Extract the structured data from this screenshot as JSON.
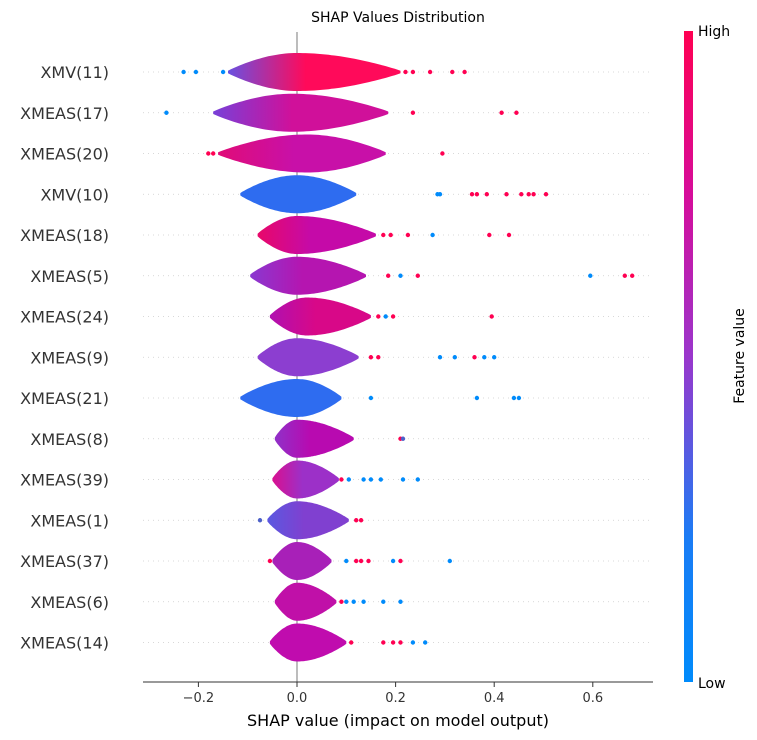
{
  "chart_data": {
    "type": "violin",
    "title": "SHAP Values Distribution",
    "xlabel": "SHAP value (impact on model output)",
    "xlim": [
      -0.31,
      0.72
    ],
    "xticks": [
      -0.2,
      0.0,
      0.2,
      0.4,
      0.6
    ],
    "xtick_labels": [
      "−0.2",
      "0.0",
      "0.2",
      "0.4",
      "0.6"
    ],
    "colorbar": {
      "high_label": "High",
      "low_label": "Low",
      "title": "Feature value",
      "low_color": "#008bfb",
      "high_color": "#ff0052"
    },
    "features": [
      {
        "name": "XMV(11)",
        "range": [
          -0.14,
          0.21
        ],
        "mode": 0.0,
        "color": "#ff0a5a",
        "left_color": "#6a50e0",
        "outliers": [
          [
            -0.23,
            0.0
          ],
          [
            -0.205,
            0.0
          ],
          [
            -0.15,
            0.0
          ],
          [
            0.22,
            1.0
          ],
          [
            0.235,
            1.0
          ],
          [
            0.27,
            1.0
          ],
          [
            0.315,
            1.0
          ],
          [
            0.34,
            1.0
          ]
        ]
      },
      {
        "name": "XMEAS(17)",
        "range": [
          -0.17,
          0.185
        ],
        "mode": -0.01,
        "color": "#d0109a",
        "left_color": "#7840d8",
        "outliers": [
          [
            -0.265,
            0.0
          ],
          [
            0.235,
            1.0
          ],
          [
            0.415,
            1.0
          ],
          [
            0.445,
            1.0
          ]
        ]
      },
      {
        "name": "XMEAS(20)",
        "range": [
          -0.16,
          0.18
        ],
        "mode": 0.02,
        "color": "#c810a8",
        "left_color": "#e00c78",
        "outliers": [
          [
            -0.18,
            1.0
          ],
          [
            -0.17,
            1.0
          ],
          [
            0.295,
            1.0
          ]
        ]
      },
      {
        "name": "XMV(10)",
        "range": [
          -0.115,
          0.12
        ],
        "mode": 0.0,
        "color": "#2e6cf0",
        "left_color": "#2e6cf0",
        "outliers": [
          [
            0.285,
            0.0
          ],
          [
            0.29,
            0.0
          ],
          [
            0.355,
            1.0
          ],
          [
            0.365,
            1.0
          ],
          [
            0.385,
            1.0
          ],
          [
            0.425,
            1.0
          ],
          [
            0.455,
            1.0
          ],
          [
            0.47,
            1.0
          ],
          [
            0.48,
            1.0
          ],
          [
            0.505,
            1.0
          ]
        ]
      },
      {
        "name": "XMEAS(18)",
        "range": [
          -0.08,
          0.16
        ],
        "mode": 0.0,
        "color": "#c50aa8",
        "left_color": "#e8086a",
        "outliers": [
          [
            0.175,
            1.0
          ],
          [
            0.19,
            1.0
          ],
          [
            0.225,
            1.0
          ],
          [
            0.275,
            0.0
          ],
          [
            0.39,
            1.0
          ],
          [
            0.43,
            1.0
          ]
        ]
      },
      {
        "name": "XMEAS(5)",
        "range": [
          -0.095,
          0.14
        ],
        "mode": 0.0,
        "color": "#b515b0",
        "left_color": "#8a38d0",
        "outliers": [
          [
            0.185,
            1.0
          ],
          [
            0.21,
            0.0
          ],
          [
            0.245,
            1.0
          ],
          [
            0.595,
            0.0
          ],
          [
            0.665,
            1.0
          ],
          [
            0.68,
            1.0
          ]
        ]
      },
      {
        "name": "XMEAS(24)",
        "range": [
          -0.055,
          0.15
        ],
        "mode": 0.02,
        "color": "#d80888",
        "left_color": "#b010b0",
        "outliers": [
          [
            0.165,
            1.0
          ],
          [
            0.18,
            0.0
          ],
          [
            0.195,
            1.0
          ],
          [
            0.395,
            1.0
          ]
        ]
      },
      {
        "name": "XMEAS(9)",
        "range": [
          -0.08,
          0.125
        ],
        "mode": 0.0,
        "color": "#8c3ed0",
        "left_color": "#8c3ed0",
        "outliers": [
          [
            0.15,
            1.0
          ],
          [
            0.165,
            1.0
          ],
          [
            0.29,
            0.0
          ],
          [
            0.32,
            0.0
          ],
          [
            0.36,
            1.0
          ],
          [
            0.38,
            0.0
          ],
          [
            0.4,
            0.0
          ]
        ]
      },
      {
        "name": "XMEAS(21)",
        "range": [
          -0.115,
          0.09
        ],
        "mode": 0.0,
        "color": "#2e6cf0",
        "left_color": "#2e6cf0",
        "outliers": [
          [
            0.15,
            0.0
          ],
          [
            0.365,
            0.0
          ],
          [
            0.44,
            0.0
          ],
          [
            0.45,
            0.0
          ]
        ]
      },
      {
        "name": "XMEAS(8)",
        "range": [
          -0.045,
          0.115
        ],
        "mode": 0.0,
        "color": "#b80ab0",
        "left_color": "#9030c8",
        "outliers": [
          [
            0.21,
            1.0
          ],
          [
            0.215,
            0.3
          ]
        ]
      },
      {
        "name": "XMEAS(39)",
        "range": [
          -0.05,
          0.085
        ],
        "mode": 0.0,
        "color": "#9c30c8",
        "left_color": "#d81090",
        "outliers": [
          [
            0.09,
            1.0
          ],
          [
            0.105,
            0.0
          ],
          [
            0.135,
            0.0
          ],
          [
            0.15,
            0.0
          ],
          [
            0.17,
            0.0
          ],
          [
            0.215,
            0.0
          ],
          [
            0.245,
            0.0
          ]
        ]
      },
      {
        "name": "XMEAS(1)",
        "range": [
          -0.06,
          0.105
        ],
        "mode": 0.0,
        "color": "#8040d0",
        "left_color": "#5a58e0",
        "outliers": [
          [
            -0.075,
            0.3
          ],
          [
            0.12,
            1.0
          ],
          [
            0.13,
            1.0
          ]
        ]
      },
      {
        "name": "XMEAS(37)",
        "range": [
          -0.05,
          0.07
        ],
        "mode": 0.0,
        "color": "#a820b8",
        "left_color": "#a820b8",
        "outliers": [
          [
            -0.055,
            1.0
          ],
          [
            0.1,
            0.0
          ],
          [
            0.12,
            1.0
          ],
          [
            0.13,
            1.0
          ],
          [
            0.145,
            1.0
          ],
          [
            0.195,
            0.0
          ],
          [
            0.21,
            1.0
          ],
          [
            0.31,
            0.0
          ]
        ]
      },
      {
        "name": "XMEAS(6)",
        "range": [
          -0.045,
          0.08
        ],
        "mode": 0.0,
        "color": "#c010a8",
        "left_color": "#c010a8",
        "outliers": [
          [
            0.09,
            1.0
          ],
          [
            0.1,
            0.0
          ],
          [
            0.115,
            0.0
          ],
          [
            0.135,
            0.0
          ],
          [
            0.175,
            0.0
          ],
          [
            0.21,
            0.0
          ]
        ]
      },
      {
        "name": "XMEAS(14)",
        "range": [
          -0.055,
          0.1
        ],
        "mode": 0.0,
        "color": "#c00cae",
        "left_color": "#c00cae",
        "outliers": [
          [
            0.11,
            1.0
          ],
          [
            0.175,
            1.0
          ],
          [
            0.195,
            1.0
          ],
          [
            0.21,
            1.0
          ],
          [
            0.235,
            0.0
          ],
          [
            0.26,
            0.0
          ]
        ]
      }
    ]
  }
}
